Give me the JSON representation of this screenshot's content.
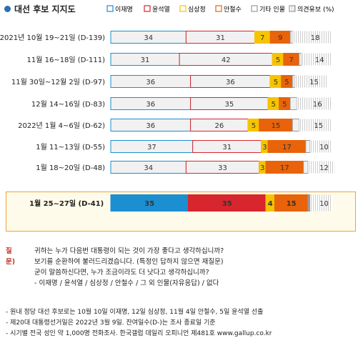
{
  "title": "대선 후보 지지도",
  "legend": [
    {
      "name": "이재명",
      "color": "#1b8fd0",
      "style": "outline"
    },
    {
      "name": "윤석열",
      "color": "#d7262d",
      "style": "outline"
    },
    {
      "name": "심상정",
      "color": "#f5c400",
      "style": "outline"
    },
    {
      "name": "안철수",
      "color": "#e8630a",
      "style": "outline"
    },
    {
      "name": "기타 인물",
      "color": "#999999",
      "style": "outline"
    },
    {
      "name": "의견유보 (%)",
      "color": "#999999",
      "style": "hatch"
    }
  ],
  "chart_data": {
    "type": "bar",
    "stacked": true,
    "orientation": "horizontal",
    "categories": [
      "2021년 10월 19~21일 (D-139)",
      "11월 16~18일 (D-111)",
      "11월 30일~12월 2일 (D-97)",
      "12월 14~16일 (D-83)",
      "2022년 1월 4~6일 (D-62)",
      "1월 11~13일 (D-55)",
      "1월 18~20일 (D-48)",
      "1월 25~27일 (D-41)"
    ],
    "series": [
      {
        "name": "이재명",
        "values": [
          34,
          31,
          36,
          36,
          36,
          37,
          34,
          35
        ]
      },
      {
        "name": "윤석열",
        "values": [
          31,
          42,
          36,
          35,
          26,
          31,
          33,
          35
        ]
      },
      {
        "name": "심상정",
        "values": [
          7,
          5,
          5,
          5,
          5,
          3,
          3,
          4
        ]
      },
      {
        "name": "안철수",
        "values": [
          9,
          7,
          5,
          5,
          15,
          17,
          17,
          15
        ]
      },
      {
        "name": "기타 인물",
        "values": [
          1,
          1,
          1,
          3,
          3,
          2,
          2,
          1
        ]
      },
      {
        "name": "의견유보",
        "values": [
          18,
          14,
          15,
          16,
          15,
          10,
          12,
          10
        ]
      }
    ],
    "highlight_index": 7
  },
  "question": {
    "tag": "질문)",
    "lines": [
      "귀하는 누가 다음번 대통령이 되는 것이 가장 좋다고 생각하십니까?",
      "보기를 순환하여 불러드리겠습니다. (특정인 답하지 않으면 재질문)",
      "굳이 말씀하신다면, 누가 조금이라도 더 낫다고 생각하십니까?",
      "- 이재명 / 윤석열 / 심상정 / 안철수 / 그 외 인물(자유응답) / 없다"
    ]
  },
  "notes": [
    "- 원내 정당 대선 후보로는 10월 10일 이재명, 12일 심상정, 11월 4일 안철수, 5일 윤석열 선출",
    "- 제20대 대통령선거일은 2022년 3월 9일. 잔여일수(D-)는 조사 종료일 기준",
    "- 시기별 전국 성인 약 1,000명 전화조사. 한국갤럽 데일리 오피니언 제481호 www.gallup.co.kr"
  ]
}
